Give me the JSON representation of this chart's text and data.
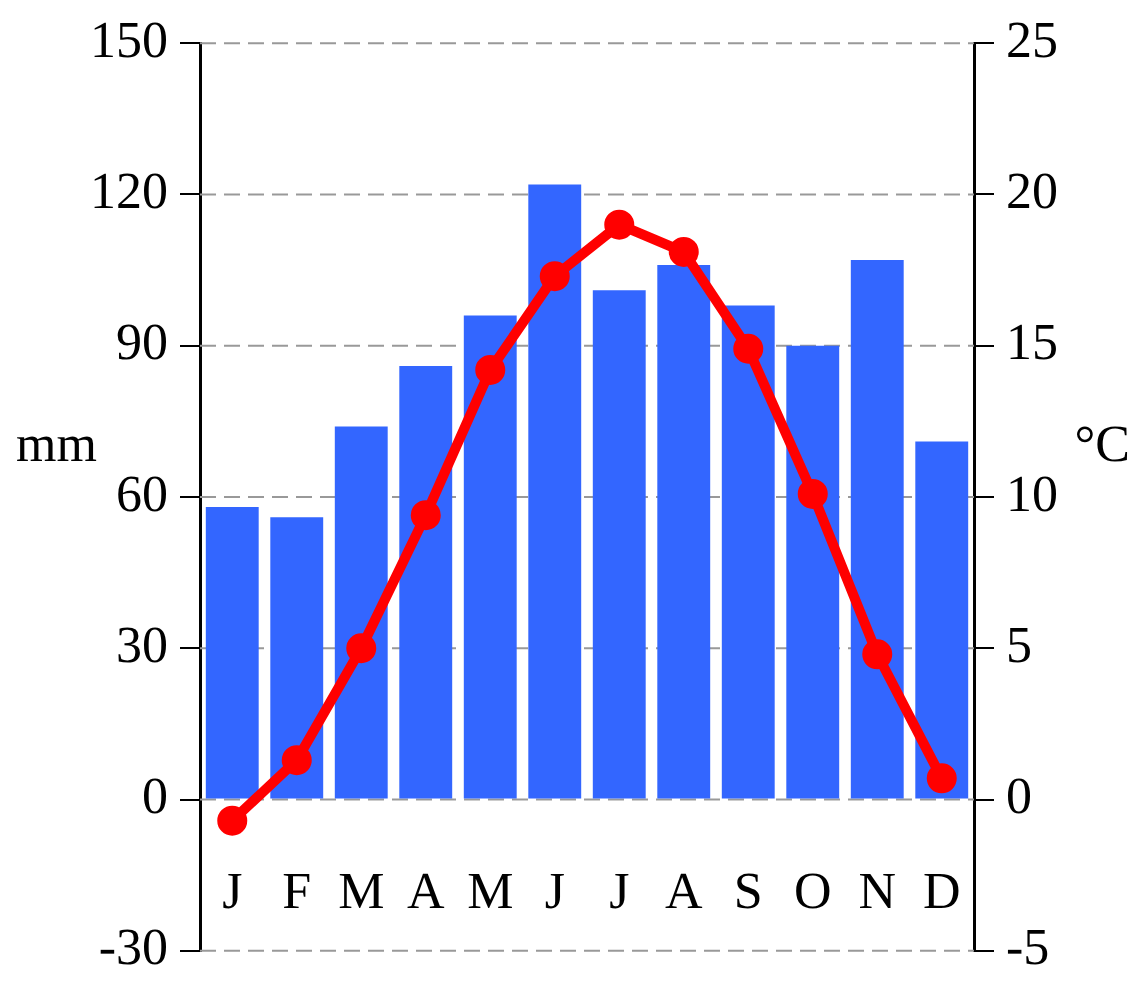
{
  "chart_data": {
    "type": "bar",
    "categories": [
      "J",
      "F",
      "M",
      "A",
      "M",
      "J",
      "J",
      "A",
      "S",
      "O",
      "N",
      "D"
    ],
    "series": [
      {
        "color": "#3366ff",
        "values": [
          58,
          56,
          74,
          86,
          96,
          122,
          101,
          106,
          98,
          90,
          107,
          71
        ]
      },
      {
        "type": "line",
        "axis": "y2",
        "color": "#ff0000",
        "marker": "circle",
        "values": [
          -0.7,
          1.3,
          5.0,
          9.4,
          14.2,
          17.3,
          19.0,
          18.1,
          14.9,
          10.1,
          4.8,
          0.7
        ]
      }
    ],
    "ylabel": "mm",
    "y2label": "°C",
    "ylim": [
      -30,
      150
    ],
    "yticks": [
      -30,
      0,
      30,
      60,
      90,
      120,
      150
    ],
    "y2lim": [
      -5,
      25
    ],
    "y2ticks": [
      -5,
      0,
      5,
      10,
      15,
      20,
      25
    ],
    "grid": "y",
    "legend": false
  }
}
